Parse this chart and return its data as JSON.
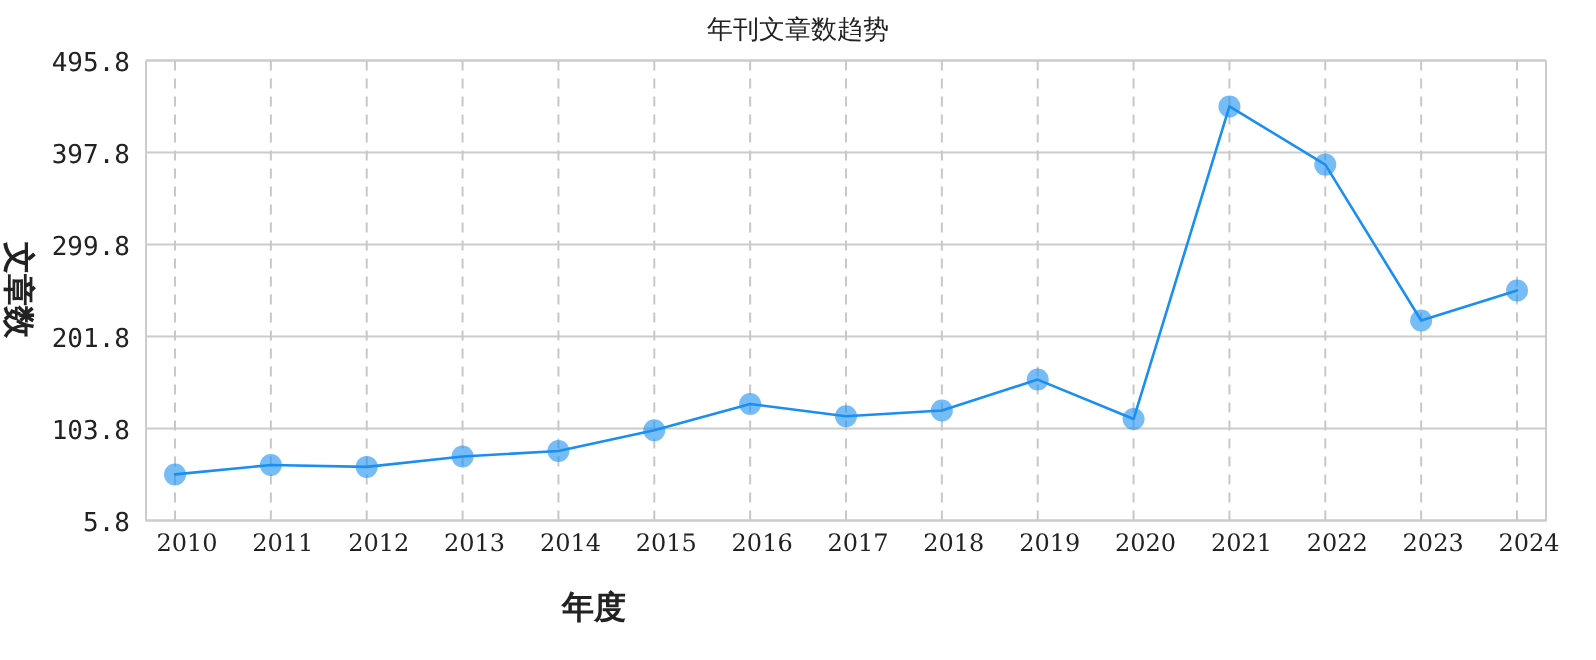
{
  "chart_data": {
    "type": "line",
    "title": "年刊文章数趋势",
    "xlabel": "年度",
    "ylabel": "文章数",
    "categories": [
      "2010",
      "2011",
      "2012",
      "2013",
      "2014",
      "2015",
      "2016",
      "2017",
      "2018",
      "2019",
      "2020",
      "2021",
      "2022",
      "2023",
      "2024"
    ],
    "series": [
      {
        "color": "#1a8ff0",
        "values": [
          55,
          65,
          63,
          74,
          80,
          102,
          130,
          117,
          123,
          156,
          114,
          447,
          385,
          219,
          251
        ]
      }
    ],
    "ylim": [
      5.8,
      495.8
    ],
    "yticks": [
      5.8,
      103.8,
      201.8,
      299.8,
      397.8,
      495.8
    ],
    "grid": true,
    "marker": "circle",
    "line_style": "solid"
  }
}
